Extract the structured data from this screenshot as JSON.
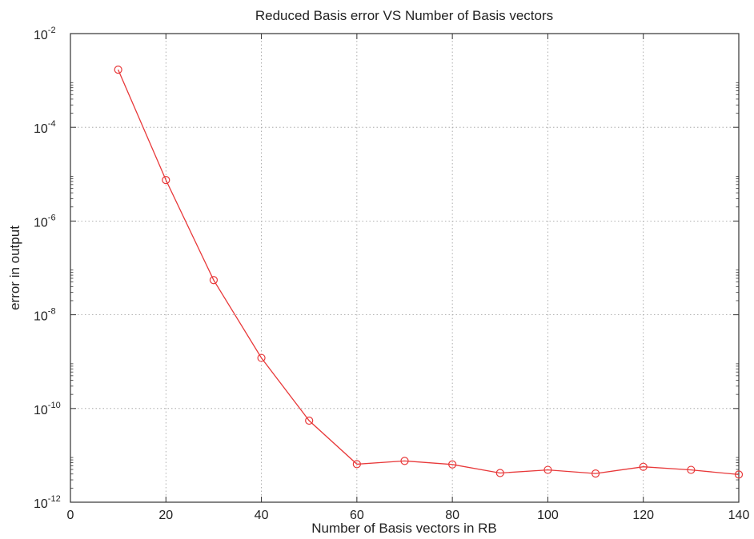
{
  "chart_data": {
    "type": "line",
    "title": "Reduced Basis error VS Number of Basis vectors",
    "xlabel": "Number of Basis vectors in RB",
    "ylabel": "error in output",
    "xlim": [
      0,
      140
    ],
    "ylim": [
      1e-12,
      0.01
    ],
    "y_scale": "log",
    "grid": true,
    "x_ticks": [
      "0",
      "20",
      "40",
      "60",
      "80",
      "100",
      "120",
      "140"
    ],
    "y_ticks": [
      {
        "base": "10",
        "exp": "-12"
      },
      {
        "base": "10",
        "exp": "-10"
      },
      {
        "base": "10",
        "exp": "-8"
      },
      {
        "base": "10",
        "exp": "-6"
      },
      {
        "base": "10",
        "exp": "-4"
      },
      {
        "base": "10",
        "exp": "-2"
      }
    ],
    "series": [
      {
        "color": "#e8393a",
        "marker": "circle",
        "x": [
          10,
          20,
          30,
          40,
          50,
          60,
          70,
          80,
          90,
          100,
          110,
          120,
          130,
          140
        ],
        "y": [
          0.0017,
          7.5e-06,
          5.5e-08,
          1.2e-09,
          5.5e-11,
          6.5e-12,
          7.6e-12,
          6.4e-12,
          4.2e-12,
          4.9e-12,
          4.1e-12,
          5.7e-12,
          4.9e-12,
          3.9e-12
        ]
      }
    ]
  }
}
